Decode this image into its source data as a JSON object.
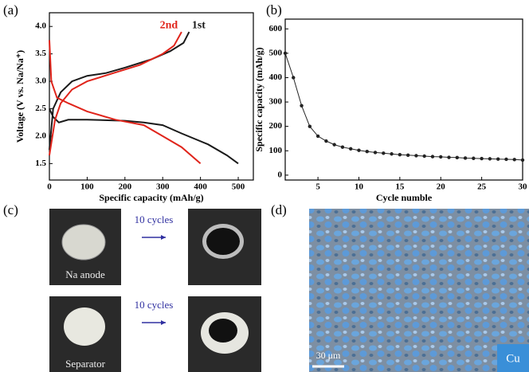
{
  "chart_data": [
    {
      "type": "line",
      "panel": "(a)",
      "xlabel": "Specific capacity (mAh/g)",
      "ylabel": "Voltage (V vs. Na/Na⁺)",
      "xlim": [
        0,
        540
      ],
      "ylim": [
        1.2,
        4.25
      ],
      "xticks": [
        0,
        100,
        200,
        300,
        400,
        500
      ],
      "yticks": [
        {
          "value": 1.5,
          "label": "1.5"
        },
        {
          "value": 2,
          "label": "2.0"
        },
        {
          "value": 2.5,
          "label": "2.5"
        },
        {
          "value": 3,
          "label": "3.0"
        },
        {
          "value": 3.5,
          "label": "3.5"
        },
        {
          "value": 4,
          "label": "4.0"
        }
      ],
      "series": [
        {
          "name": "1st",
          "color": "#1a1a1a",
          "x": [
            0,
            10,
            25,
            50,
            100,
            200,
            250,
            300,
            350,
            420,
            470,
            500,
            null,
            0,
            10,
            30,
            60,
            100,
            150,
            200,
            270,
            320,
            355,
            370
          ],
          "values": [
            2.5,
            2.35,
            2.25,
            2.3,
            2.3,
            2.28,
            2.25,
            2.2,
            2.05,
            1.85,
            1.65,
            1.5,
            null,
            1.75,
            2.5,
            2.8,
            3.0,
            3.1,
            3.15,
            3.25,
            3.4,
            3.55,
            3.7,
            3.9
          ]
        },
        {
          "name": "2nd",
          "color": "#e0241b",
          "x": [
            0,
            5,
            20,
            50,
            100,
            175,
            250,
            300,
            350,
            400,
            null,
            0,
            15,
            30,
            60,
            100,
            170,
            240,
            300,
            330,
            350
          ],
          "values": [
            3.75,
            3.0,
            2.7,
            2.6,
            2.45,
            2.3,
            2.2,
            2.0,
            1.8,
            1.5,
            null,
            1.65,
            2.3,
            2.6,
            2.85,
            3.0,
            3.15,
            3.3,
            3.5,
            3.65,
            3.9
          ]
        }
      ]
    },
    {
      "type": "line",
      "panel": "(b)",
      "xlabel": "Cycle numble",
      "ylabel": "Specific capacity (mAh/g)",
      "markers": true,
      "xlim": [
        1,
        30
      ],
      "ylim": [
        -20,
        640
      ],
      "xticks": [
        5,
        10,
        15,
        20,
        25,
        30
      ],
      "yticks": [
        0,
        100,
        200,
        300,
        400,
        500,
        600
      ],
      "series": [
        {
          "color": "#222222",
          "x": [
            1,
            2,
            3,
            4,
            5,
            6,
            7,
            8,
            9,
            10,
            11,
            12,
            13,
            14,
            15,
            16,
            17,
            18,
            19,
            20,
            21,
            22,
            23,
            24,
            25,
            26,
            27,
            28,
            29,
            30
          ],
          "values": [
            500,
            400,
            285,
            200,
            160,
            140,
            125,
            115,
            108,
            102,
            97,
            93,
            90,
            87,
            84,
            82,
            80,
            78,
            76,
            75,
            73,
            72,
            70,
            69,
            68,
            67,
            66,
            65,
            64,
            62
          ]
        }
      ]
    }
  ],
  "panel_c": {
    "label": "(c)",
    "top_photo": "Na anode",
    "bottom_photo": "Separator",
    "top_arrow": "10 cycles",
    "bottom_arrow": "10 cycles"
  },
  "panel_d": {
    "label": "(d)",
    "scale": "30 μm",
    "element": "Cu"
  }
}
